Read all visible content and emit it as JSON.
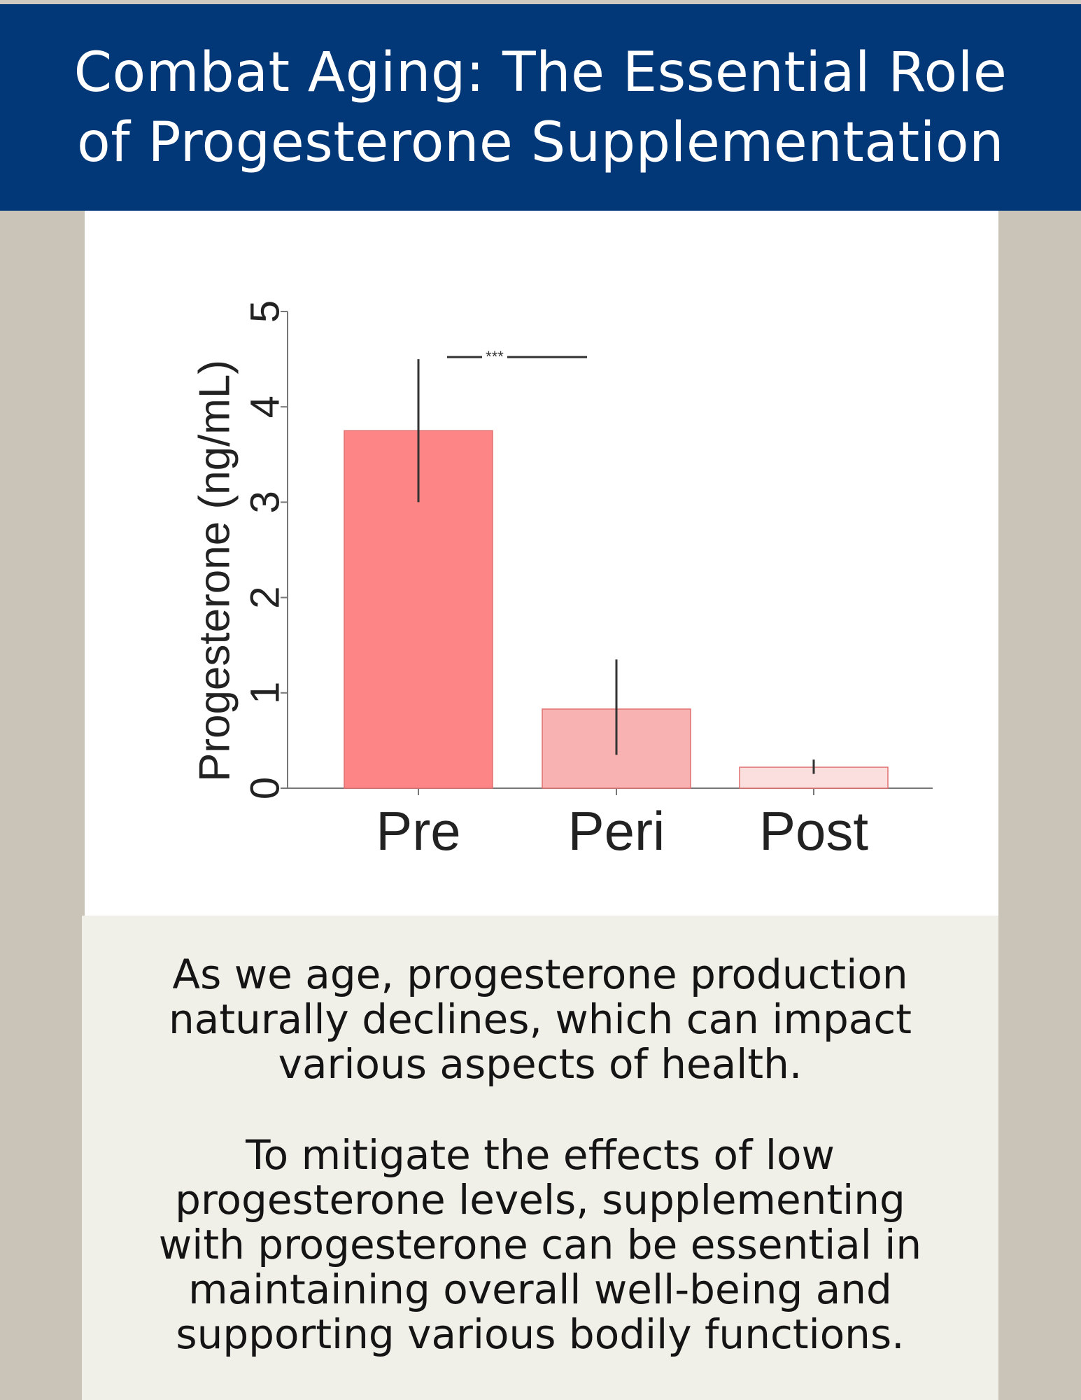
{
  "header": {
    "title_line1": "Combat Aging: The Essential Role",
    "title_line2": "of Progesterone Supplementation"
  },
  "chart_data": {
    "type": "bar",
    "ylabel": "Progesterone (ng/mL)",
    "xlabel": "",
    "ylim": [
      0,
      5
    ],
    "yticks": [
      "0",
      "1",
      "2",
      "3",
      "4",
      "5"
    ],
    "categories": [
      "Pre",
      "Peri",
      "Post"
    ],
    "values": [
      3.75,
      0.83,
      0.22
    ],
    "error_low": [
      3.0,
      0.35,
      0.15
    ],
    "error_high": [
      4.5,
      1.35,
      0.3
    ],
    "bar_colors": [
      "#fd8585",
      "#f9b2b2",
      "#fbdede"
    ],
    "significance": {
      "label": "***",
      "between": [
        "Pre",
        "Peri"
      ],
      "y": 4.5
    },
    "grid": false
  },
  "body": {
    "para1": [
      "As we age, progesterone  production",
      "naturally declines, which can impact",
      "various aspects of health."
    ],
    "para2": [
      "To mitigate the effects of low",
      "progesterone levels, supplementing",
      "with progesterone can be essential in",
      "maintaining overall well-being and",
      "supporting various bodily functions."
    ]
  }
}
